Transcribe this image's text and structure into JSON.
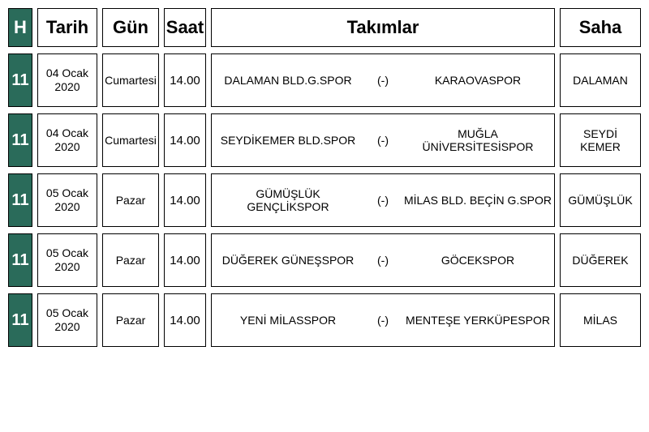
{
  "colors": {
    "header_bg": "#2a6b5a",
    "header_fg": "#ffffff",
    "cell_border": "#000000",
    "page_bg": "#ffffff",
    "text": "#000000"
  },
  "header": {
    "h": "H",
    "date": "Tarih",
    "day": "Gün",
    "hour": "Saat",
    "teams": "Takımlar",
    "venue": "Saha"
  },
  "rows": [
    {
      "week": "11",
      "date_l1": "04 Ocak",
      "date_l2": "2020",
      "day": "Cumartesi",
      "hour": "14.00",
      "home": "DALAMAN BLD.G.SPOR",
      "score": "(-)",
      "away": "KARAOVASPOR",
      "venue": "DALAMAN"
    },
    {
      "week": "11",
      "date_l1": "04 Ocak",
      "date_l2": "2020",
      "day": "Cumartesi",
      "hour": "14.00",
      "home": "SEYDİKEMER BLD.SPOR",
      "score": "(-)",
      "away": "MUĞLA ÜNİVERSİTESİSPOR",
      "venue": "SEYDİ KEMER"
    },
    {
      "week": "11",
      "date_l1": "05 Ocak",
      "date_l2": "2020",
      "day": "Pazar",
      "hour": "14.00",
      "home": "GÜMÜŞLÜK GENÇLİKSPOR",
      "score": "(-)",
      "away": "MİLAS BLD. BEÇİN G.SPOR",
      "venue": "GÜMÜŞLÜK"
    },
    {
      "week": "11",
      "date_l1": "05 Ocak",
      "date_l2": "2020",
      "day": "Pazar",
      "hour": "14.00",
      "home": "DÜĞEREK GÜNEŞSPOR",
      "score": "(-)",
      "away": "GÖCEKSPOR",
      "venue": "DÜĞEREK"
    },
    {
      "week": "11",
      "date_l1": "05 Ocak",
      "date_l2": "2020",
      "day": "Pazar",
      "hour": "14.00",
      "home": "YENİ MİLASSPOR",
      "score": "(-)",
      "away": "MENTEŞE YERKÜPESPOR",
      "venue": "MİLAS"
    }
  ]
}
